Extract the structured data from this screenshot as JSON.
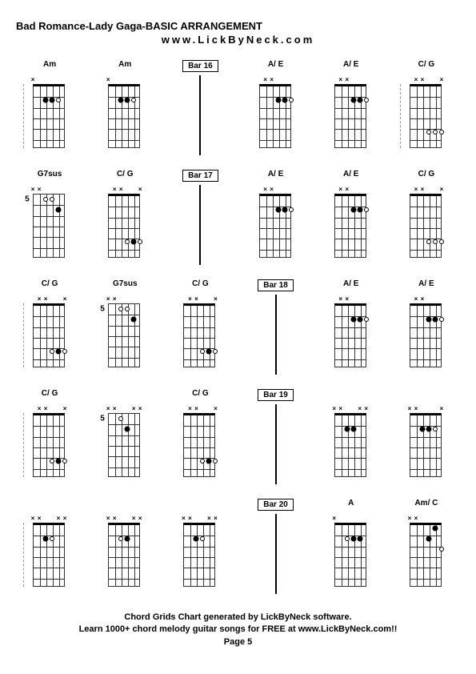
{
  "title": "Bad Romance-Lady Gaga-BASIC ARRANGEMENT",
  "subtitle": "www.LickByNeck.com",
  "footer": {
    "line1": "Chord Grids Chart generated by LickByNeck software.",
    "line2": "Learn 1000+ chord melody guitar songs for FREE at www.LickByNeck.com!!",
    "line3": "Page 5"
  },
  "frets": 6,
  "strings": 6,
  "fretboard": {
    "grid_color": "#333333",
    "nut_color": "#000000"
  },
  "rows": [
    [
      {
        "type": "chord",
        "label": "Am",
        "bracket": true,
        "markers": [
          "x",
          "",
          "",
          "",
          "",
          ""
        ],
        "dots": [
          {
            "s": 3,
            "f": 2
          },
          {
            "s": 4,
            "f": 2
          },
          {
            "s": 5,
            "f": 2,
            "open": true
          }
        ]
      },
      {
        "type": "chord",
        "label": "Am",
        "markers": [
          "x",
          "",
          "",
          "",
          "",
          ""
        ],
        "dots": [
          {
            "s": 3,
            "f": 2
          },
          {
            "s": 4,
            "f": 2
          },
          {
            "s": 5,
            "f": 2,
            "open": true
          }
        ]
      },
      {
        "type": "bar",
        "label": "Bar 16"
      },
      {
        "type": "chord",
        "label": "A/ E",
        "markers": [
          "",
          "x",
          "x",
          "",
          "",
          ""
        ],
        "dots": [
          {
            "s": 4,
            "f": 2
          },
          {
            "s": 5,
            "f": 2
          },
          {
            "s": 6,
            "f": 2,
            "open": true
          }
        ]
      },
      {
        "type": "chord",
        "label": "A/ E",
        "markers": [
          "",
          "x",
          "x",
          "",
          "",
          ""
        ],
        "dots": [
          {
            "s": 4,
            "f": 2
          },
          {
            "s": 5,
            "f": 2
          },
          {
            "s": 6,
            "f": 2,
            "open": true
          }
        ]
      },
      {
        "type": "chord",
        "label": "C/ G",
        "bracket": true,
        "markers": [
          "",
          "x",
          "x",
          "",
          "",
          "x"
        ],
        "dots": [
          {
            "s": 4,
            "f": 5,
            "open": true
          },
          {
            "s": 5,
            "f": 5,
            "open": true
          },
          {
            "s": 6,
            "f": 5,
            "open": true
          }
        ]
      }
    ],
    [
      {
        "type": "chord",
        "label": "G7sus",
        "pos": "5",
        "markers": [
          "x",
          "x",
          "",
          "",
          "",
          ""
        ],
        "dots": [
          {
            "s": 3,
            "f": 1,
            "open": true
          },
          {
            "s": 4,
            "f": 1,
            "open": true
          },
          {
            "s": 5,
            "f": 2
          }
        ]
      },
      {
        "type": "chord",
        "label": "C/ G",
        "markers": [
          "",
          "x",
          "x",
          "",
          "",
          "x"
        ],
        "dots": [
          {
            "s": 4,
            "f": 5,
            "open": true
          },
          {
            "s": 5,
            "f": 5
          },
          {
            "s": 6,
            "f": 5,
            "open": true
          }
        ]
      },
      {
        "type": "bar",
        "label": "Bar 17"
      },
      {
        "type": "chord",
        "label": "A/ E",
        "markers": [
          "",
          "x",
          "x",
          "",
          "",
          ""
        ],
        "dots": [
          {
            "s": 4,
            "f": 2
          },
          {
            "s": 5,
            "f": 2
          },
          {
            "s": 6,
            "f": 2,
            "open": true
          }
        ]
      },
      {
        "type": "chord",
        "label": "A/ E",
        "markers": [
          "",
          "x",
          "x",
          "",
          "",
          ""
        ],
        "dots": [
          {
            "s": 4,
            "f": 2
          },
          {
            "s": 5,
            "f": 2
          },
          {
            "s": 6,
            "f": 2,
            "open": true
          }
        ]
      },
      {
        "type": "chord",
        "label": "C/ G",
        "markers": [
          "",
          "x",
          "x",
          "",
          "",
          "x"
        ],
        "dots": [
          {
            "s": 4,
            "f": 5,
            "open": true
          },
          {
            "s": 5,
            "f": 5,
            "open": true
          },
          {
            "s": 6,
            "f": 5,
            "open": true
          }
        ]
      }
    ],
    [
      {
        "type": "chord",
        "label": "C/ G",
        "bracket": true,
        "markers": [
          "",
          "x",
          "x",
          "",
          "",
          "x"
        ],
        "dots": [
          {
            "s": 4,
            "f": 5,
            "open": true
          },
          {
            "s": 5,
            "f": 5
          },
          {
            "s": 6,
            "f": 5,
            "open": true
          }
        ]
      },
      {
        "type": "chord",
        "label": "G7sus",
        "pos": "5",
        "markers": [
          "x",
          "x",
          "",
          "",
          "",
          ""
        ],
        "dots": [
          {
            "s": 3,
            "f": 1,
            "open": true
          },
          {
            "s": 4,
            "f": 1,
            "open": true
          },
          {
            "s": 5,
            "f": 2
          }
        ]
      },
      {
        "type": "chord",
        "label": "C/ G",
        "markers": [
          "",
          "x",
          "x",
          "",
          "",
          "x"
        ],
        "dots": [
          {
            "s": 4,
            "f": 5,
            "open": true
          },
          {
            "s": 5,
            "f": 5
          },
          {
            "s": 6,
            "f": 5,
            "open": true
          }
        ]
      },
      {
        "type": "bar",
        "label": "Bar 18"
      },
      {
        "type": "chord",
        "label": "A/ E",
        "markers": [
          "",
          "x",
          "x",
          "",
          "",
          ""
        ],
        "dots": [
          {
            "s": 4,
            "f": 2
          },
          {
            "s": 5,
            "f": 2
          },
          {
            "s": 6,
            "f": 2,
            "open": true
          }
        ]
      },
      {
        "type": "chord",
        "label": "A/ E",
        "markers": [
          "",
          "x",
          "x",
          "",
          "",
          ""
        ],
        "dots": [
          {
            "s": 4,
            "f": 2
          },
          {
            "s": 5,
            "f": 2
          },
          {
            "s": 6,
            "f": 2,
            "open": true
          }
        ]
      }
    ],
    [
      {
        "type": "chord",
        "label": "C/ G",
        "bracket": true,
        "markers": [
          "",
          "x",
          "x",
          "",
          "",
          "x"
        ],
        "dots": [
          {
            "s": 4,
            "f": 5,
            "open": true
          },
          {
            "s": 5,
            "f": 5
          },
          {
            "s": 6,
            "f": 5,
            "open": true
          }
        ]
      },
      {
        "type": "chord",
        "label": "",
        "pos": "5",
        "markers": [
          "x",
          "x",
          "",
          "",
          "x",
          "x"
        ],
        "dots": [
          {
            "s": 3,
            "f": 1,
            "open": true
          },
          {
            "s": 4,
            "f": 2
          }
        ]
      },
      {
        "type": "chord",
        "label": "C/ G",
        "markers": [
          "",
          "x",
          "x",
          "",
          "",
          "x"
        ],
        "dots": [
          {
            "s": 4,
            "f": 5,
            "open": true
          },
          {
            "s": 5,
            "f": 5
          },
          {
            "s": 6,
            "f": 5,
            "open": true
          }
        ]
      },
      {
        "type": "bar",
        "label": "Bar 19"
      },
      {
        "type": "chord",
        "label": "",
        "markers": [
          "x",
          "x",
          "",
          "",
          "x",
          "x"
        ],
        "dots": [
          {
            "s": 3,
            "f": 2
          },
          {
            "s": 4,
            "f": 2
          }
        ]
      },
      {
        "type": "chord",
        "label": "",
        "markers": [
          "x",
          "x",
          "",
          "",
          "x",
          "x"
        ],
        "dots": [
          {
            "s": 3,
            "f": 2
          },
          {
            "s": 4,
            "f": 2
          }
        ]
      }
    ],
    [
      {
        "type": "chord",
        "label": "",
        "bracket": true,
        "markers": [
          "x",
          "x",
          "",
          "",
          "x",
          "x"
        ],
        "dots": [
          {
            "s": 3,
            "f": 2
          },
          {
            "s": 4,
            "f": 2,
            "open": true
          }
        ]
      },
      {
        "type": "chord",
        "label": "",
        "markers": [
          "x",
          "x",
          "",
          "",
          "x",
          "x"
        ],
        "dots": [
          {
            "s": 3,
            "f": 2,
            "open": true
          },
          {
            "s": 4,
            "f": 2
          }
        ]
      },
      {
        "type": "chord",
        "label": "",
        "markers": [
          "x",
          "x",
          "",
          "",
          "x",
          "x"
        ],
        "dots": [
          {
            "s": 3,
            "f": 2
          },
          {
            "s": 4,
            "f": 2,
            "open": true
          }
        ]
      },
      {
        "type": "bar",
        "label": "Bar 20"
      },
      {
        "type": "chord",
        "label": "A",
        "markers": [
          "x",
          "",
          "",
          "",
          "",
          ""
        ],
        "dots": [
          {
            "s": 3,
            "f": 2,
            "open": true
          },
          {
            "s": 4,
            "f": 2
          },
          {
            "s": 5,
            "f": 2
          }
        ]
      },
      {
        "type": "chord",
        "label": "A",
        "markers": [
          "x",
          "",
          "",
          "",
          "",
          ""
        ],
        "dots": [
          {
            "s": 3,
            "f": 2,
            "open": true
          },
          {
            "s": 4,
            "f": 2
          },
          {
            "s": 5,
            "f": 2
          }
        ]
      }
    ]
  ],
  "extra_row3": [
    {
      "type": "chord",
      "label": "C/ G",
      "markers": [
        "",
        "x",
        "x",
        "",
        "",
        "x"
      ],
      "dots": [
        {
          "s": 4,
          "f": 5,
          "open": true
        },
        {
          "s": 5,
          "f": 5,
          "open": true
        },
        {
          "s": 6,
          "f": 5,
          "open": true
        }
      ]
    }
  ],
  "extra_row4": [
    {
      "type": "chord",
      "label": "",
      "markers": [
        "x",
        "x",
        "",
        "",
        "",
        "x"
      ],
      "dots": [
        {
          "s": 3,
          "f": 2
        },
        {
          "s": 4,
          "f": 2
        },
        {
          "s": 5,
          "f": 2,
          "open": true
        }
      ]
    }
  ],
  "extra_row5": [
    {
      "type": "chord",
      "label": "Am/ C",
      "markers": [
        "x",
        "x",
        "",
        "",
        "",
        ""
      ],
      "dots": [
        {
          "s": 4,
          "f": 2
        },
        {
          "s": 5,
          "f": 1
        },
        {
          "s": 6,
          "f": 3,
          "open": true
        }
      ]
    }
  ]
}
